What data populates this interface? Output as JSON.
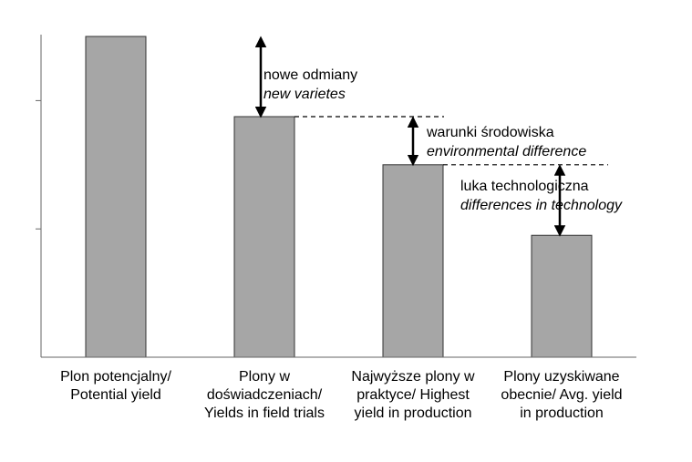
{
  "chart_data": {
    "type": "bar",
    "categories": [
      "Plon potencjalny/\nPotential yield",
      "Plony w\ndoświadczeniach/\nYields in field trials",
      "Najwyższe plony w\npraktyce/ Highest\nyield in production",
      "Plony uzyskiwane\nobecnie/ Avg. yield\nin production"
    ],
    "values": [
      100,
      75,
      60,
      38
    ],
    "ylim": [
      0,
      100
    ],
    "yticks": [
      40,
      80
    ],
    "grid": false,
    "bar_color": "#a6a6a6",
    "annotations": [
      {
        "text": "nowe odmiany",
        "text_en": "new varietes",
        "from": 100,
        "to": 75
      },
      {
        "text": "warunki środowiska",
        "text_en": "environmental difference",
        "from": 75,
        "to": 60
      },
      {
        "text": "luka technologiczna",
        "text_en": "differences in technology",
        "from": 60,
        "to": 38
      }
    ]
  }
}
